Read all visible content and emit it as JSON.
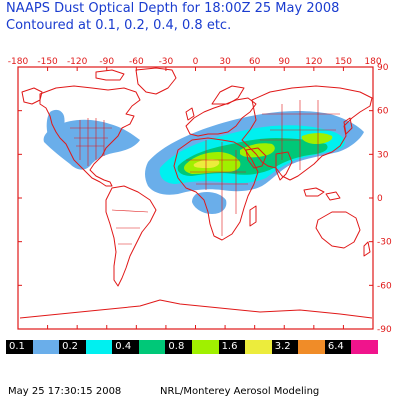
{
  "title": {
    "line1": "NAAPS Dust Optical Depth for 18:00Z 25 May 2008",
    "line2": "Contoured at 0.1, 0.2, 0.4, 0.8 etc."
  },
  "map": {
    "longitude_ticks": [
      "-180",
      "-150",
      "-120",
      "-90",
      "-60",
      "-30",
      "0",
      "30",
      "60",
      "90",
      "120",
      "150",
      "180"
    ],
    "latitude_ticks": [
      "90",
      "60",
      "30",
      "0",
      "-30",
      "-60",
      "-90"
    ],
    "frame_color": "#e01818",
    "coastline_color": "#e01818"
  },
  "legend": {
    "items": [
      {
        "label": "0.1",
        "color": "#000000",
        "text_color": "#ffffff"
      },
      {
        "label": "",
        "color": "#6aaeea",
        "text_color": "#000000"
      },
      {
        "label": "0.2",
        "color": "#000000",
        "text_color": "#ffffff"
      },
      {
        "label": "",
        "color": "#00f0f0",
        "text_color": "#000000"
      },
      {
        "label": "0.4",
        "color": "#000000",
        "text_color": "#ffffff"
      },
      {
        "label": "",
        "color": "#00c878",
        "text_color": "#000000"
      },
      {
        "label": "0.8",
        "color": "#000000",
        "text_color": "#ffffff"
      },
      {
        "label": "",
        "color": "#a0f000",
        "text_color": "#000000"
      },
      {
        "label": "1.6",
        "color": "#000000",
        "text_color": "#ffffff"
      },
      {
        "label": "",
        "color": "#ecec3c",
        "text_color": "#000000"
      },
      {
        "label": "3.2",
        "color": "#000000",
        "text_color": "#ffffff"
      },
      {
        "label": "",
        "color": "#f08c28",
        "text_color": "#000000"
      },
      {
        "label": "6.4",
        "color": "#000000",
        "text_color": "#ffffff"
      },
      {
        "label": "",
        "color": "#f0148c",
        "text_color": "#000000"
      }
    ]
  },
  "footer": {
    "timestamp": "May 25 17:30:15 2008",
    "credit": "NRL/Monterey Aerosol Modeling"
  }
}
